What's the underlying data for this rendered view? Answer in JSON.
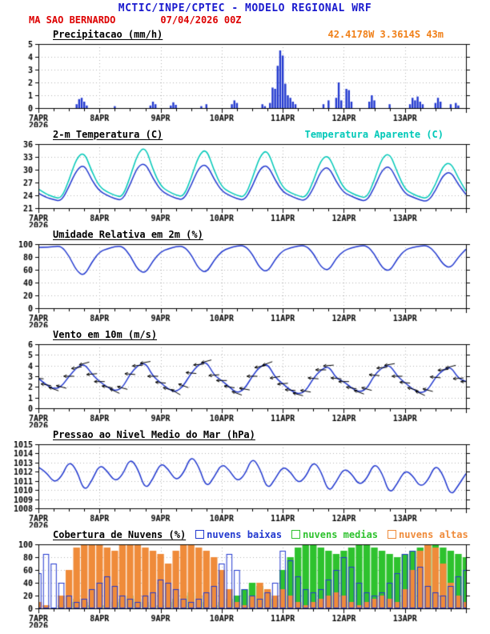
{
  "header": {
    "title": "MCTIC/INPE/CPTEC - MODELO REGIONAL WRF",
    "station": "MA SAO BERNARDO",
    "run": "07/04/2026 00Z",
    "coords": "42.4178W 3.3614S 43m",
    "colors": {
      "title": "#1a1ace",
      "station": "#dd0000",
      "run": "#dd0000",
      "coords": "#f08019"
    }
  },
  "axis": {
    "x_hours_max": 168,
    "minor_tick_hours": 6,
    "day_labels": [
      {
        "h": 0,
        "label": "7APR",
        "sub": "2026"
      },
      {
        "h": 24,
        "label": "8APR"
      },
      {
        "h": 48,
        "label": "9APR"
      },
      {
        "h": 72,
        "label": "10APR"
      },
      {
        "h": 96,
        "label": "11APR"
      },
      {
        "h": 120,
        "label": "12APR"
      },
      {
        "h": 144,
        "label": "13APR"
      }
    ]
  },
  "chart_data": [
    {
      "type": "bar",
      "title": "Precipitacao (mm/h)",
      "ylim": [
        0,
        5
      ],
      "yticks": [
        0,
        1,
        2,
        3,
        4,
        5
      ],
      "color": "#2239cf",
      "x_unit": "hours since 07APR2026 00Z",
      "points": [
        [
          15,
          0.3
        ],
        [
          16,
          0.7
        ],
        [
          17,
          0.8
        ],
        [
          18,
          0.5
        ],
        [
          19,
          0.2
        ],
        [
          30,
          0.15
        ],
        [
          44,
          0.2
        ],
        [
          45,
          0.5
        ],
        [
          46,
          0.3
        ],
        [
          52,
          0.2
        ],
        [
          53,
          0.45
        ],
        [
          54,
          0.25
        ],
        [
          64,
          0.15
        ],
        [
          66,
          0.3
        ],
        [
          76,
          0.3
        ],
        [
          77,
          0.6
        ],
        [
          78,
          0.4
        ],
        [
          88,
          0.3
        ],
        [
          89,
          0.15
        ],
        [
          91,
          0.4
        ],
        [
          92,
          1.6
        ],
        [
          93,
          1.5
        ],
        [
          94,
          3.3
        ],
        [
          95,
          4.5
        ],
        [
          96,
          4.1
        ],
        [
          97,
          1.9
        ],
        [
          98,
          1.0
        ],
        [
          99,
          0.8
        ],
        [
          100,
          0.5
        ],
        [
          101,
          0.3
        ],
        [
          112,
          0.3
        ],
        [
          114,
          0.6
        ],
        [
          117,
          0.8
        ],
        [
          118,
          2.0
        ],
        [
          119,
          0.6
        ],
        [
          121,
          1.5
        ],
        [
          122,
          1.4
        ],
        [
          123,
          0.5
        ],
        [
          130,
          0.5
        ],
        [
          131,
          1.0
        ],
        [
          132,
          0.6
        ],
        [
          138,
          0.3
        ],
        [
          146,
          0.3
        ],
        [
          147,
          0.8
        ],
        [
          148,
          0.6
        ],
        [
          149,
          0.9
        ],
        [
          150,
          0.5
        ],
        [
          151,
          0.3
        ],
        [
          156,
          0.4
        ],
        [
          157,
          0.8
        ],
        [
          158,
          0.5
        ],
        [
          162,
          0.3
        ],
        [
          164,
          0.4
        ],
        [
          165,
          0.2
        ]
      ]
    },
    {
      "type": "line",
      "title": "2-m Temperatura (C)",
      "legend_right": "Temperatura Aparente (C)",
      "ylim": [
        21,
        36
      ],
      "yticks": [
        21,
        24,
        27,
        30,
        33,
        36
      ],
      "x_step_hours": 3,
      "series": [
        {
          "name": "2-m Temperatura (C)",
          "color": "#2239cf",
          "values": [
            24.5,
            23.5,
            23.0,
            22.6,
            26.0,
            30.0,
            31.3,
            27.5,
            25.0,
            24.0,
            23.2,
            22.8,
            26.5,
            30.8,
            31.6,
            28.0,
            25.2,
            24.1,
            23.3,
            22.9,
            26.3,
            30.5,
            31.4,
            27.8,
            25.0,
            24.0,
            23.2,
            22.8,
            26.0,
            30.3,
            31.2,
            27.6,
            24.8,
            23.9,
            23.1,
            22.7,
            25.5,
            29.8,
            30.8,
            27.2,
            24.6,
            23.8,
            23.0,
            22.6,
            25.8,
            30.0,
            31.0,
            27.4,
            24.4,
            23.6,
            22.9,
            22.5,
            25.0,
            28.8,
            29.6,
            26.5,
            24.2
          ]
        },
        {
          "name": "Temperatura Aparente (C)",
          "color": "#00c8b8",
          "values": [
            25.5,
            24.3,
            23.6,
            23.2,
            27.5,
            32.8,
            34.2,
            29.5,
            26.0,
            24.8,
            24.0,
            23.5,
            28.2,
            33.8,
            35.5,
            30.0,
            26.2,
            24.9,
            24.1,
            23.6,
            28.0,
            33.4,
            35.0,
            29.8,
            26.0,
            24.8,
            24.0,
            23.5,
            27.8,
            33.2,
            34.8,
            29.6,
            25.8,
            24.6,
            23.9,
            23.4,
            27.2,
            32.4,
            33.5,
            29.2,
            25.6,
            24.5,
            23.8,
            23.3,
            27.5,
            32.8,
            34.0,
            29.4,
            25.4,
            24.3,
            23.6,
            23.2,
            26.5,
            31.0,
            31.8,
            28.0,
            25.0
          ]
        }
      ]
    },
    {
      "type": "line",
      "title": "Umidade Relativa em 2m (%)",
      "ylim": [
        0,
        100
      ],
      "yticks": [
        0,
        20,
        40,
        60,
        80,
        100
      ],
      "x_step_hours": 3,
      "series": [
        {
          "name": "Umidade Relativa em 2m (%)",
          "color": "#2239cf",
          "values": [
            95,
            95,
            96,
            97,
            82,
            58,
            50,
            72,
            88,
            93,
            96,
            97,
            83,
            60,
            54,
            74,
            88,
            93,
            96,
            97,
            84,
            61,
            55,
            75,
            89,
            94,
            97,
            98,
            85,
            62,
            56,
            76,
            90,
            94,
            97,
            98,
            86,
            64,
            58,
            78,
            90,
            94,
            97,
            98,
            85,
            63,
            57,
            77,
            91,
            95,
            97,
            98,
            87,
            68,
            62,
            80,
            92
          ]
        }
      ]
    },
    {
      "type": "line_barbs",
      "title": "Vento em 10m (m/s)",
      "ylim": [
        0,
        6
      ],
      "yticks": [
        0,
        1,
        2,
        3,
        4,
        5,
        6
      ],
      "x_step_hours": 3,
      "series": [
        {
          "name": "Vento em 10m (m/s)",
          "color": "#2239cf",
          "values": [
            2.8,
            2.2,
            1.8,
            2.0,
            3.0,
            3.8,
            4.2,
            3.2,
            2.5,
            2.0,
            1.6,
            1.9,
            3.2,
            4.0,
            4.3,
            3.0,
            2.4,
            1.8,
            1.5,
            2.1,
            3.3,
            4.1,
            4.4,
            3.1,
            2.6,
            2.0,
            1.4,
            1.8,
            3.0,
            3.9,
            4.2,
            2.9,
            2.3,
            1.7,
            1.3,
            1.6,
            2.8,
            3.6,
            4.0,
            2.8,
            2.5,
            1.9,
            1.5,
            1.8,
            3.1,
            3.8,
            4.1,
            3.0,
            2.4,
            1.8,
            1.4,
            1.7,
            2.9,
            3.6,
            3.9,
            2.8,
            2.5
          ]
        }
      ],
      "directions_deg_from": [
        95,
        100,
        110,
        105,
        90,
        80,
        75,
        85,
        90,
        100,
        115,
        105,
        95,
        85,
        80,
        90,
        95,
        105,
        120,
        110,
        95,
        85,
        75,
        85,
        90,
        100,
        110,
        100,
        90,
        80,
        70,
        80,
        85,
        95,
        105,
        100,
        95,
        90,
        85,
        95,
        90,
        100,
        110,
        105,
        95,
        85,
        80,
        90,
        95,
        105,
        115,
        105,
        95,
        85,
        75,
        85,
        90
      ],
      "barb_color": "#000000"
    },
    {
      "type": "line",
      "title": "Pressao ao Nivel Medio do Mar (hPa)",
      "ylim": [
        1008,
        1015
      ],
      "yticks": [
        1008,
        1009,
        1010,
        1011,
        1012,
        1013,
        1014,
        1015
      ],
      "x_step_hours": 3,
      "series": [
        {
          "name": "Pressao ao Nivel Medio do Mar (hPa)",
          "color": "#2239cf",
          "values": [
            1012.5,
            1012.0,
            1010.8,
            1011.4,
            1013.2,
            1012.2,
            1009.8,
            1011.0,
            1012.8,
            1012.1,
            1010.9,
            1011.6,
            1013.5,
            1012.4,
            1010.0,
            1011.2,
            1013.0,
            1012.3,
            1011.0,
            1011.8,
            1013.8,
            1012.6,
            1010.2,
            1011.4,
            1012.9,
            1012.2,
            1010.9,
            1011.6,
            1013.6,
            1012.4,
            1010.0,
            1011.2,
            1012.6,
            1012.0,
            1010.7,
            1011.4,
            1013.2,
            1012.1,
            1009.7,
            1010.9,
            1012.4,
            1011.8,
            1010.5,
            1011.2,
            1013.0,
            1011.9,
            1009.5,
            1010.7,
            1012.2,
            1011.6,
            1010.3,
            1011.0,
            1012.8,
            1011.7,
            1009.3,
            1010.5,
            1011.8
          ]
        }
      ]
    },
    {
      "type": "cloud_bar",
      "title": "Cobertura de Nuvens (%)",
      "ylim": [
        0,
        100
      ],
      "yticks": [
        0,
        20,
        40,
        60,
        80,
        100
      ],
      "x_step_hours": 3,
      "legend": [
        {
          "label": "nuvens baixas",
          "color": "#2239cf"
        },
        {
          "label": "nuvens medias",
          "color": "#2ec22e"
        },
        {
          "label": "nuvens altas",
          "color": "#ef8b3a"
        }
      ],
      "series": [
        {
          "name": "nuvens medias",
          "color": "#2ec22e",
          "style": "fill",
          "values": [
            0,
            0,
            0,
            5,
            10,
            15,
            10,
            5,
            5,
            5,
            10,
            15,
            20,
            15,
            10,
            5,
            5,
            10,
            15,
            20,
            25,
            20,
            10,
            5,
            10,
            15,
            20,
            30,
            40,
            35,
            25,
            15,
            60,
            80,
            95,
            100,
            100,
            95,
            90,
            85,
            90,
            95,
            100,
            100,
            95,
            90,
            85,
            80,
            85,
            90,
            95,
            100,
            100,
            95,
            90,
            85,
            80
          ]
        },
        {
          "name": "nuvens altas",
          "color": "#ef8b3a",
          "style": "fill",
          "values": [
            10,
            5,
            0,
            20,
            60,
            95,
            100,
            100,
            100,
            95,
            90,
            100,
            100,
            100,
            95,
            90,
            85,
            70,
            90,
            100,
            100,
            95,
            90,
            80,
            60,
            30,
            10,
            5,
            20,
            40,
            30,
            20,
            30,
            20,
            10,
            5,
            10,
            15,
            20,
            25,
            20,
            10,
            5,
            10,
            15,
            20,
            15,
            10,
            30,
            60,
            90,
            100,
            95,
            70,
            40,
            20,
            10
          ]
        },
        {
          "name": "nuvens baixas",
          "color": "#2239cf",
          "style": "outline",
          "values": [
            55,
            85,
            70,
            40,
            20,
            10,
            15,
            30,
            40,
            50,
            35,
            20,
            15,
            10,
            20,
            25,
            45,
            40,
            30,
            15,
            10,
            15,
            25,
            35,
            70,
            85,
            60,
            30,
            20,
            15,
            25,
            40,
            90,
            75,
            50,
            30,
            25,
            30,
            45,
            60,
            80,
            65,
            40,
            25,
            20,
            25,
            40,
            55,
            85,
            90,
            65,
            35,
            25,
            20,
            35,
            50,
            60
          ]
        }
      ]
    }
  ]
}
